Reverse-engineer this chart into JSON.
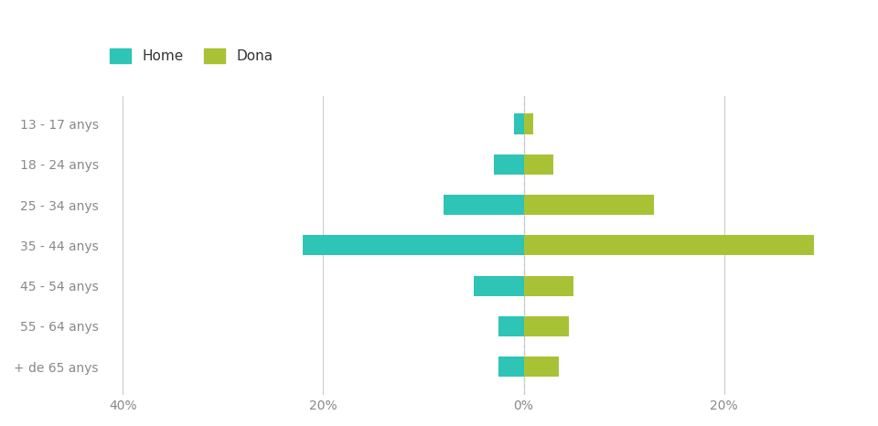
{
  "categories": [
    "13 - 17 anys",
    "18 - 24 anys",
    "25 - 34 anys",
    "35 - 44 anys",
    "45 - 54 anys",
    "55 - 64 anys",
    "+ de 65 anys"
  ],
  "home_values": [
    -1.0,
    -3.0,
    -8.0,
    -22.0,
    -5.0,
    -2.5,
    -2.5
  ],
  "dona_values": [
    1.0,
    3.0,
    13.0,
    29.0,
    5.0,
    4.5,
    3.5
  ],
  "home_color": "#2ec4b6",
  "dona_color": "#a8c236",
  "home_label": "Home",
  "dona_label": "Dona",
  "xlim": [
    -42,
    34
  ],
  "xticks": [
    -40,
    -20,
    0,
    20
  ],
  "xticklabels": [
    "40%",
    "20%",
    "0%",
    "20%"
  ],
  "background_color": "#ffffff",
  "grid_color": "#cccccc",
  "bar_height": 0.5,
  "tick_fontsize": 10,
  "legend_fontsize": 11
}
